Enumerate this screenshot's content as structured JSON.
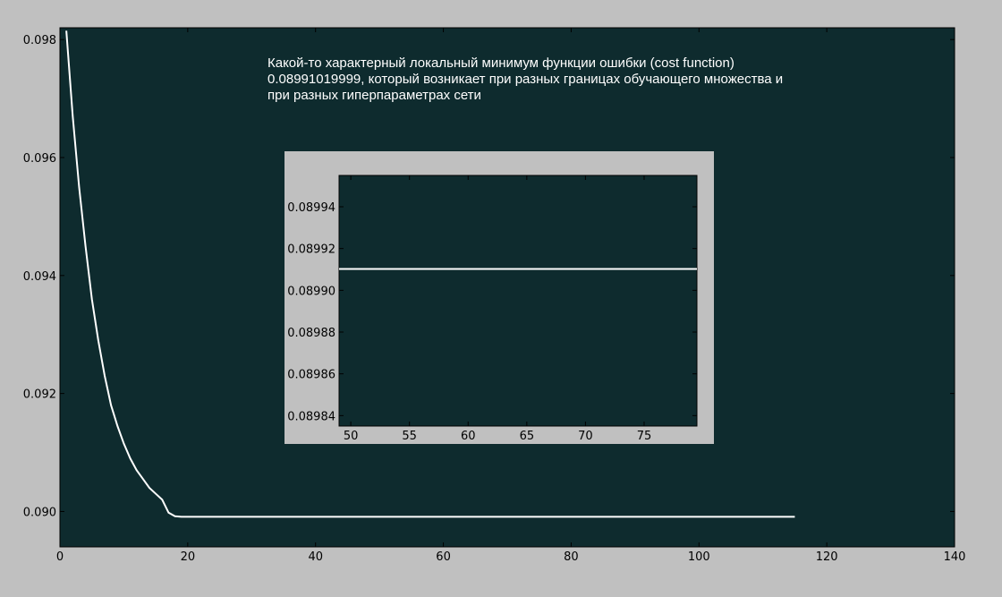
{
  "chart_data": [
    {
      "type": "line",
      "title": "",
      "xlabel": "",
      "ylabel": "",
      "xlim": [
        0,
        140
      ],
      "ylim": [
        0.0894,
        0.0982
      ],
      "xticks": [
        0,
        20,
        40,
        60,
        80,
        100,
        120,
        140
      ],
      "yticks": [
        0.09,
        0.092,
        0.094,
        0.096,
        0.098
      ],
      "xtick_labels": [
        "0",
        "20",
        "40",
        "60",
        "80",
        "100",
        "120",
        "140"
      ],
      "ytick_labels": [
        "0.090",
        "0.092",
        "0.094",
        "0.096",
        "0.098"
      ],
      "grid": false,
      "background_color": "#0e2b2e",
      "line_color": "#ffffff",
      "annotation": [
        "Какой-то характерный локальный минимум функции ошибки (cost function)",
        "0.08991019999, который возникает при разных границах обучающего множества и",
        "при разных гиперпараметрах сети"
      ],
      "series": [
        {
          "x": [
            1,
            2,
            3,
            4,
            5,
            6,
            7,
            8,
            9,
            10,
            11,
            12,
            13,
            14,
            15,
            16,
            17,
            18,
            19,
            20,
            30,
            40,
            60,
            80,
            100,
            115
          ],
          "values": [
            0.09815,
            0.0967,
            0.0955,
            0.0945,
            0.0936,
            0.0929,
            0.0923,
            0.0918,
            0.09145,
            0.09115,
            0.0909,
            0.0907,
            0.09055,
            0.0904,
            0.0903,
            0.0902,
            0.08998,
            0.08992,
            0.08991,
            0.08991,
            0.08991,
            0.08991,
            0.08991,
            0.08991,
            0.08991,
            0.08991
          ]
        }
      ]
    },
    {
      "type": "line",
      "title": "",
      "xlabel": "",
      "ylabel": "",
      "xlim": [
        49,
        79.5
      ],
      "ylim": [
        0.089835,
        0.089955
      ],
      "xticks": [
        50,
        55,
        60,
        65,
        70,
        75
      ],
      "yticks": [
        0.08984,
        0.08986,
        0.08988,
        0.0899,
        0.08992,
        0.08994
      ],
      "xtick_labels": [
        "50",
        "55",
        "60",
        "65",
        "70",
        "75"
      ],
      "ytick_labels": [
        "0.08984",
        "0.08986",
        "0.08988",
        "0.08990",
        "0.08992",
        "0.08994"
      ],
      "grid": false,
      "background_color": "#0e2b2e",
      "line_color": "#ffffff",
      "series": [
        {
          "x": [
            49,
            55,
            60,
            65,
            70,
            75,
            79.5
          ],
          "values": [
            0.0899102,
            0.0899102,
            0.0899102,
            0.0899102,
            0.0899102,
            0.0899102,
            0.0899102
          ]
        }
      ]
    }
  ]
}
